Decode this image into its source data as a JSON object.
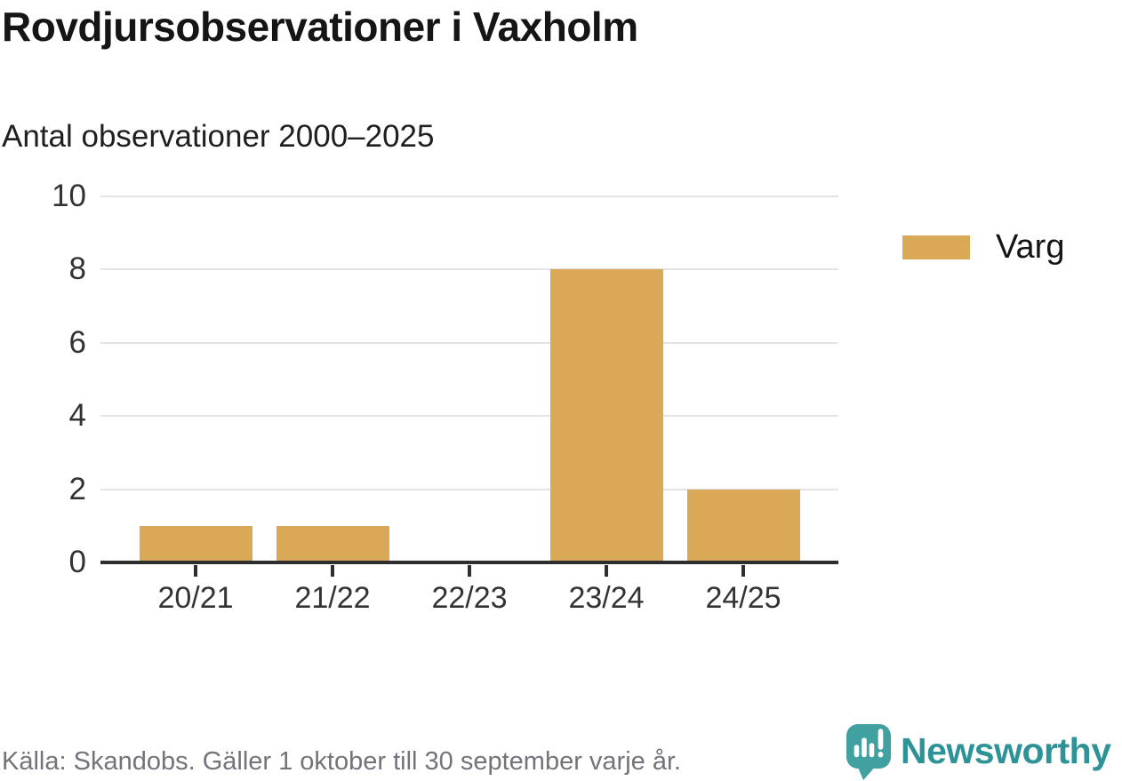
{
  "title": "Rovdjursobservationer i Vaxholm",
  "subtitle": "Antal observationer 2000–2025",
  "legend": {
    "items": [
      {
        "label": "Varg",
        "color": "#d9a957"
      }
    ]
  },
  "footer": {
    "source": "Källa: Skandobs. Gäller 1 oktober till 30 september varje år."
  },
  "branding": {
    "name": "Newsworthy",
    "icon": "newsworthy-logo-icon",
    "icon_color": "#41a1a1",
    "text_color": "#2d9396"
  },
  "chart_data": {
    "type": "bar",
    "title": "Rovdjursobservationer i Vaxholm",
    "subtitle": "Antal observationer 2000–2025",
    "categories": [
      "20/21",
      "21/22",
      "22/23",
      "23/24",
      "24/25"
    ],
    "series": [
      {
        "name": "Varg",
        "color": "#d9a957",
        "values": [
          1,
          1,
          0,
          8,
          2
        ]
      }
    ],
    "xlabel": "",
    "ylabel": "",
    "ylim": [
      0,
      10
    ],
    "yticks": [
      0,
      2,
      4,
      6,
      8,
      10
    ],
    "grid": true,
    "legend_position": "right",
    "colors": {
      "grid": "#e3e3e3",
      "axis": "#2e2e2e",
      "tick_label": "#333333"
    }
  }
}
